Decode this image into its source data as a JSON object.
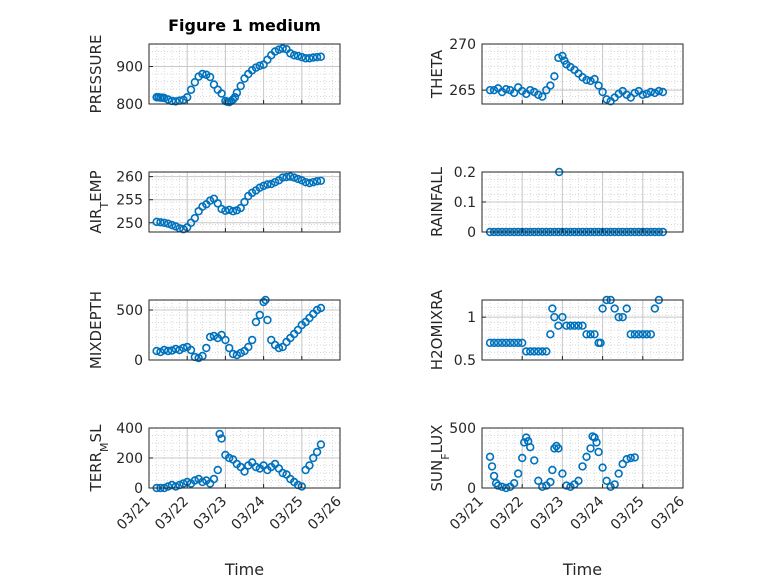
{
  "title": "Figure 1 medium",
  "xlabel": "Time",
  "x_ticks": [
    "03/21",
    "03/22",
    "03/23",
    "03/24",
    "03/25",
    "03/26"
  ],
  "colors": {
    "marker": "#0072BD",
    "axes": "#262626",
    "grid": "#d9d9d9",
    "background": "#ffffff"
  },
  "chart_data": [
    {
      "type": "scatter",
      "ylabel": "PRESSURE",
      "ylim": [
        800,
        960
      ],
      "yticks": [
        "800",
        "900"
      ],
      "ytick_values": [
        800,
        900
      ],
      "xlim": [
        "03/21",
        "03/26"
      ],
      "grid": true,
      "x": [
        0.2,
        0.25,
        0.3,
        0.35,
        0.4,
        0.5,
        0.6,
        0.7,
        0.8,
        0.9,
        1.0,
        1.1,
        1.2,
        1.3,
        1.4,
        1.5,
        1.6,
        1.7,
        1.8,
        1.9,
        2.0,
        2.05,
        2.1,
        2.15,
        2.2,
        2.25,
        2.3,
        2.4,
        2.5,
        2.6,
        2.7,
        2.8,
        2.9,
        3.0,
        3.1,
        3.2,
        3.3,
        3.4,
        3.5,
        3.6,
        3.7,
        3.8,
        3.9,
        4.0,
        4.1,
        4.2,
        4.3,
        4.4,
        4.5
      ],
      "values": [
        818,
        818,
        817,
        817,
        816,
        812,
        808,
        807,
        809,
        811,
        818,
        838,
        858,
        873,
        880,
        878,
        872,
        852,
        838,
        828,
        808,
        806,
        805,
        808,
        812,
        818,
        830,
        848,
        868,
        880,
        890,
        897,
        902,
        905,
        918,
        930,
        940,
        945,
        948,
        946,
        935,
        930,
        928,
        925,
        922,
        922,
        924,
        925,
        926
      ]
    },
    {
      "type": "scatter",
      "ylabel": "THETA",
      "ylim": [
        263.5,
        270
      ],
      "yticks": [
        "265",
        "270"
      ],
      "ytick_values": [
        265,
        270
      ],
      "xlim": [
        "03/21",
        "03/26"
      ],
      "grid": true,
      "x": [
        0.2,
        0.3,
        0.4,
        0.5,
        0.6,
        0.7,
        0.8,
        0.9,
        1.0,
        1.1,
        1.2,
        1.3,
        1.4,
        1.5,
        1.6,
        1.7,
        1.8,
        1.9,
        2.0,
        2.05,
        2.1,
        2.2,
        2.3,
        2.4,
        2.5,
        2.6,
        2.7,
        2.8,
        2.9,
        3.0,
        3.1,
        3.2,
        3.3,
        3.4,
        3.5,
        3.6,
        3.7,
        3.8,
        3.9,
        4.0,
        4.1,
        4.2,
        4.3,
        4.4,
        4.5
      ],
      "values": [
        265,
        265,
        265.2,
        264.8,
        265.1,
        265,
        264.7,
        265.3,
        264.9,
        264.6,
        265,
        264.8,
        264.5,
        264.3,
        265,
        265.5,
        266.5,
        268.5,
        268.7,
        268.2,
        267.8,
        267.5,
        267.2,
        266.8,
        266.4,
        266.1,
        266,
        266.2,
        265.5,
        264.8,
        264,
        263.8,
        264.2,
        264.6,
        264.9,
        264.5,
        264.2,
        264.7,
        264.9,
        264.5,
        264.6,
        264.8,
        264.7,
        264.9,
        264.8
      ]
    },
    {
      "type": "scatter",
      "ylabel": "AIR_TEMP",
      "ylim": [
        248,
        261
      ],
      "yticks": [
        "250",
        "255",
        "260"
      ],
      "ytick_values": [
        250,
        255,
        260
      ],
      "xlim": [
        "03/21",
        "03/26"
      ],
      "grid": true,
      "x": [
        0.2,
        0.3,
        0.4,
        0.5,
        0.6,
        0.7,
        0.8,
        0.9,
        1.0,
        1.1,
        1.2,
        1.3,
        1.4,
        1.5,
        1.6,
        1.7,
        1.8,
        1.9,
        2.0,
        2.1,
        2.2,
        2.3,
        2.4,
        2.5,
        2.6,
        2.7,
        2.8,
        2.9,
        3.0,
        3.1,
        3.2,
        3.3,
        3.4,
        3.5,
        3.6,
        3.7,
        3.8,
        3.9,
        4.0,
        4.1,
        4.2,
        4.3,
        4.4,
        4.5
      ],
      "values": [
        250.2,
        250.1,
        250,
        249.8,
        249.5,
        249.2,
        248.8,
        248.6,
        249,
        250,
        251,
        252.5,
        253.5,
        254,
        254.8,
        255.2,
        254.2,
        253,
        252.6,
        252.8,
        252.5,
        252.7,
        253.2,
        254.5,
        255.8,
        256.5,
        257,
        257.6,
        258,
        258.3,
        258.4,
        258.8,
        259.2,
        259.8,
        259.9,
        260,
        259.8,
        259.5,
        259.2,
        258.8,
        258.6,
        258.8,
        259,
        259.1
      ]
    },
    {
      "type": "scatter",
      "ylabel": "RAINFALL",
      "ylim": [
        0,
        0.2
      ],
      "yticks": [
        "0",
        "0.1",
        "0.2"
      ],
      "ytick_values": [
        0,
        0.1,
        0.2
      ],
      "xlim": [
        "03/21",
        "03/26"
      ],
      "grid": true,
      "x": [
        0.2,
        0.3,
        0.4,
        0.5,
        0.6,
        0.7,
        0.8,
        0.9,
        1.0,
        1.1,
        1.2,
        1.3,
        1.4,
        1.5,
        1.6,
        1.7,
        1.8,
        1.9,
        1.92,
        2.0,
        2.1,
        2.2,
        2.3,
        2.4,
        2.5,
        2.6,
        2.7,
        2.8,
        2.9,
        3.0,
        3.1,
        3.2,
        3.3,
        3.4,
        3.5,
        3.6,
        3.7,
        3.8,
        3.9,
        4.0,
        4.1,
        4.2,
        4.3,
        4.4,
        4.5
      ],
      "values": [
        0,
        0,
        0,
        0,
        0,
        0,
        0,
        0,
        0,
        0,
        0,
        0,
        0,
        0,
        0,
        0,
        0,
        0,
        0.2,
        0,
        0,
        0,
        0,
        0,
        0,
        0,
        0,
        0,
        0,
        0,
        0,
        0,
        0,
        0,
        0,
        0,
        0,
        0,
        0,
        0,
        0,
        0,
        0,
        0,
        0
      ]
    },
    {
      "type": "scatter",
      "ylabel": "MIXDEPTH",
      "ylim": [
        0,
        600
      ],
      "yticks": [
        "0",
        "500"
      ],
      "ytick_values": [
        0,
        500
      ],
      "xlim": [
        "03/21",
        "03/26"
      ],
      "grid": true,
      "x": [
        0.2,
        0.3,
        0.4,
        0.5,
        0.6,
        0.7,
        0.8,
        0.9,
        1.0,
        1.1,
        1.2,
        1.3,
        1.4,
        1.5,
        1.6,
        1.7,
        1.8,
        1.9,
        2.0,
        2.1,
        2.2,
        2.3,
        2.4,
        2.5,
        2.6,
        2.7,
        2.8,
        2.9,
        3.0,
        3.05,
        3.1,
        3.2,
        3.3,
        3.4,
        3.5,
        3.6,
        3.7,
        3.8,
        3.9,
        4.0,
        4.1,
        4.2,
        4.3,
        4.4,
        4.5
      ],
      "values": [
        90,
        80,
        100,
        90,
        95,
        110,
        100,
        120,
        130,
        100,
        30,
        20,
        40,
        120,
        230,
        240,
        220,
        250,
        200,
        120,
        60,
        50,
        70,
        90,
        130,
        200,
        380,
        450,
        580,
        600,
        400,
        200,
        150,
        120,
        130,
        180,
        220,
        260,
        300,
        350,
        380,
        420,
        460,
        500,
        520
      ]
    },
    {
      "type": "scatter",
      "ylabel": "H2OMIXRA",
      "ylim": [
        0.5,
        1.2
      ],
      "yticks": [
        "0.5",
        "1"
      ],
      "ytick_values": [
        0.5,
        1
      ],
      "xlim": [
        "03/21",
        "03/26"
      ],
      "grid": true,
      "x": [
        0.2,
        0.3,
        0.4,
        0.5,
        0.6,
        0.7,
        0.8,
        0.9,
        1.0,
        1.1,
        1.2,
        1.3,
        1.4,
        1.5,
        1.6,
        1.7,
        1.75,
        1.8,
        1.9,
        2.0,
        2.1,
        2.2,
        2.3,
        2.4,
        2.5,
        2.6,
        2.7,
        2.8,
        2.9,
        2.95,
        3.0,
        3.1,
        3.2,
        3.3,
        3.4,
        3.5,
        3.6,
        3.7,
        3.8,
        3.9,
        4.0,
        4.1,
        4.2,
        4.3,
        4.4
      ],
      "values": [
        0.7,
        0.7,
        0.7,
        0.7,
        0.7,
        0.7,
        0.7,
        0.7,
        0.7,
        0.6,
        0.6,
        0.6,
        0.6,
        0.6,
        0.6,
        0.8,
        1.1,
        1.0,
        0.9,
        1.0,
        0.9,
        0.9,
        0.9,
        0.9,
        0.9,
        0.8,
        0.8,
        0.8,
        0.7,
        0.7,
        1.1,
        1.2,
        1.2,
        1.1,
        1.0,
        1.0,
        1.1,
        0.8,
        0.8,
        0.8,
        0.8,
        0.8,
        0.8,
        1.1,
        1.2
      ]
    },
    {
      "type": "scatter",
      "ylabel": "TERR_MSL",
      "ylim": [
        0,
        400
      ],
      "yticks": [
        "0",
        "200",
        "400"
      ],
      "ytick_values": [
        0,
        200,
        400
      ],
      "xlim": [
        "03/21",
        "03/26"
      ],
      "grid": true,
      "x": [
        0.2,
        0.3,
        0.4,
        0.5,
        0.6,
        0.7,
        0.8,
        0.9,
        1.0,
        1.1,
        1.2,
        1.3,
        1.4,
        1.5,
        1.6,
        1.7,
        1.8,
        1.85,
        1.9,
        2.0,
        2.1,
        2.2,
        2.3,
        2.4,
        2.5,
        2.6,
        2.7,
        2.8,
        2.9,
        3.0,
        3.1,
        3.2,
        3.3,
        3.4,
        3.5,
        3.6,
        3.7,
        3.8,
        3.9,
        4.0,
        4.1,
        4.2,
        4.3,
        4.4,
        4.5
      ],
      "values": [
        0,
        0,
        0,
        10,
        20,
        10,
        20,
        30,
        40,
        30,
        50,
        60,
        40,
        50,
        30,
        60,
        120,
        360,
        330,
        220,
        200,
        190,
        160,
        140,
        110,
        150,
        170,
        140,
        130,
        150,
        120,
        140,
        160,
        130,
        100,
        90,
        60,
        40,
        20,
        10,
        120,
        150,
        200,
        240,
        290
      ]
    },
    {
      "type": "scatter",
      "ylabel": "SUN_FLUX",
      "ylim": [
        0,
        500
      ],
      "yticks": [
        "0",
        "500"
      ],
      "ytick_values": [
        0,
        500
      ],
      "xlim": [
        "03/21",
        "03/26"
      ],
      "grid": true,
      "x": [
        0.2,
        0.25,
        0.3,
        0.35,
        0.4,
        0.5,
        0.6,
        0.7,
        0.8,
        0.9,
        1.0,
        1.05,
        1.1,
        1.15,
        1.2,
        1.3,
        1.4,
        1.5,
        1.6,
        1.7,
        1.75,
        1.8,
        1.85,
        1.9,
        2.0,
        2.1,
        2.2,
        2.3,
        2.4,
        2.5,
        2.6,
        2.7,
        2.75,
        2.8,
        2.85,
        2.9,
        3.0,
        3.1,
        3.2,
        3.3,
        3.4,
        3.5,
        3.6,
        3.7,
        3.8
      ],
      "values": [
        260,
        180,
        100,
        40,
        20,
        10,
        0,
        10,
        40,
        120,
        250,
        380,
        420,
        390,
        340,
        230,
        60,
        10,
        20,
        50,
        150,
        330,
        350,
        330,
        120,
        20,
        10,
        30,
        60,
        180,
        260,
        330,
        430,
        420,
        380,
        300,
        170,
        60,
        10,
        30,
        120,
        200,
        240,
        250,
        255
      ]
    }
  ]
}
